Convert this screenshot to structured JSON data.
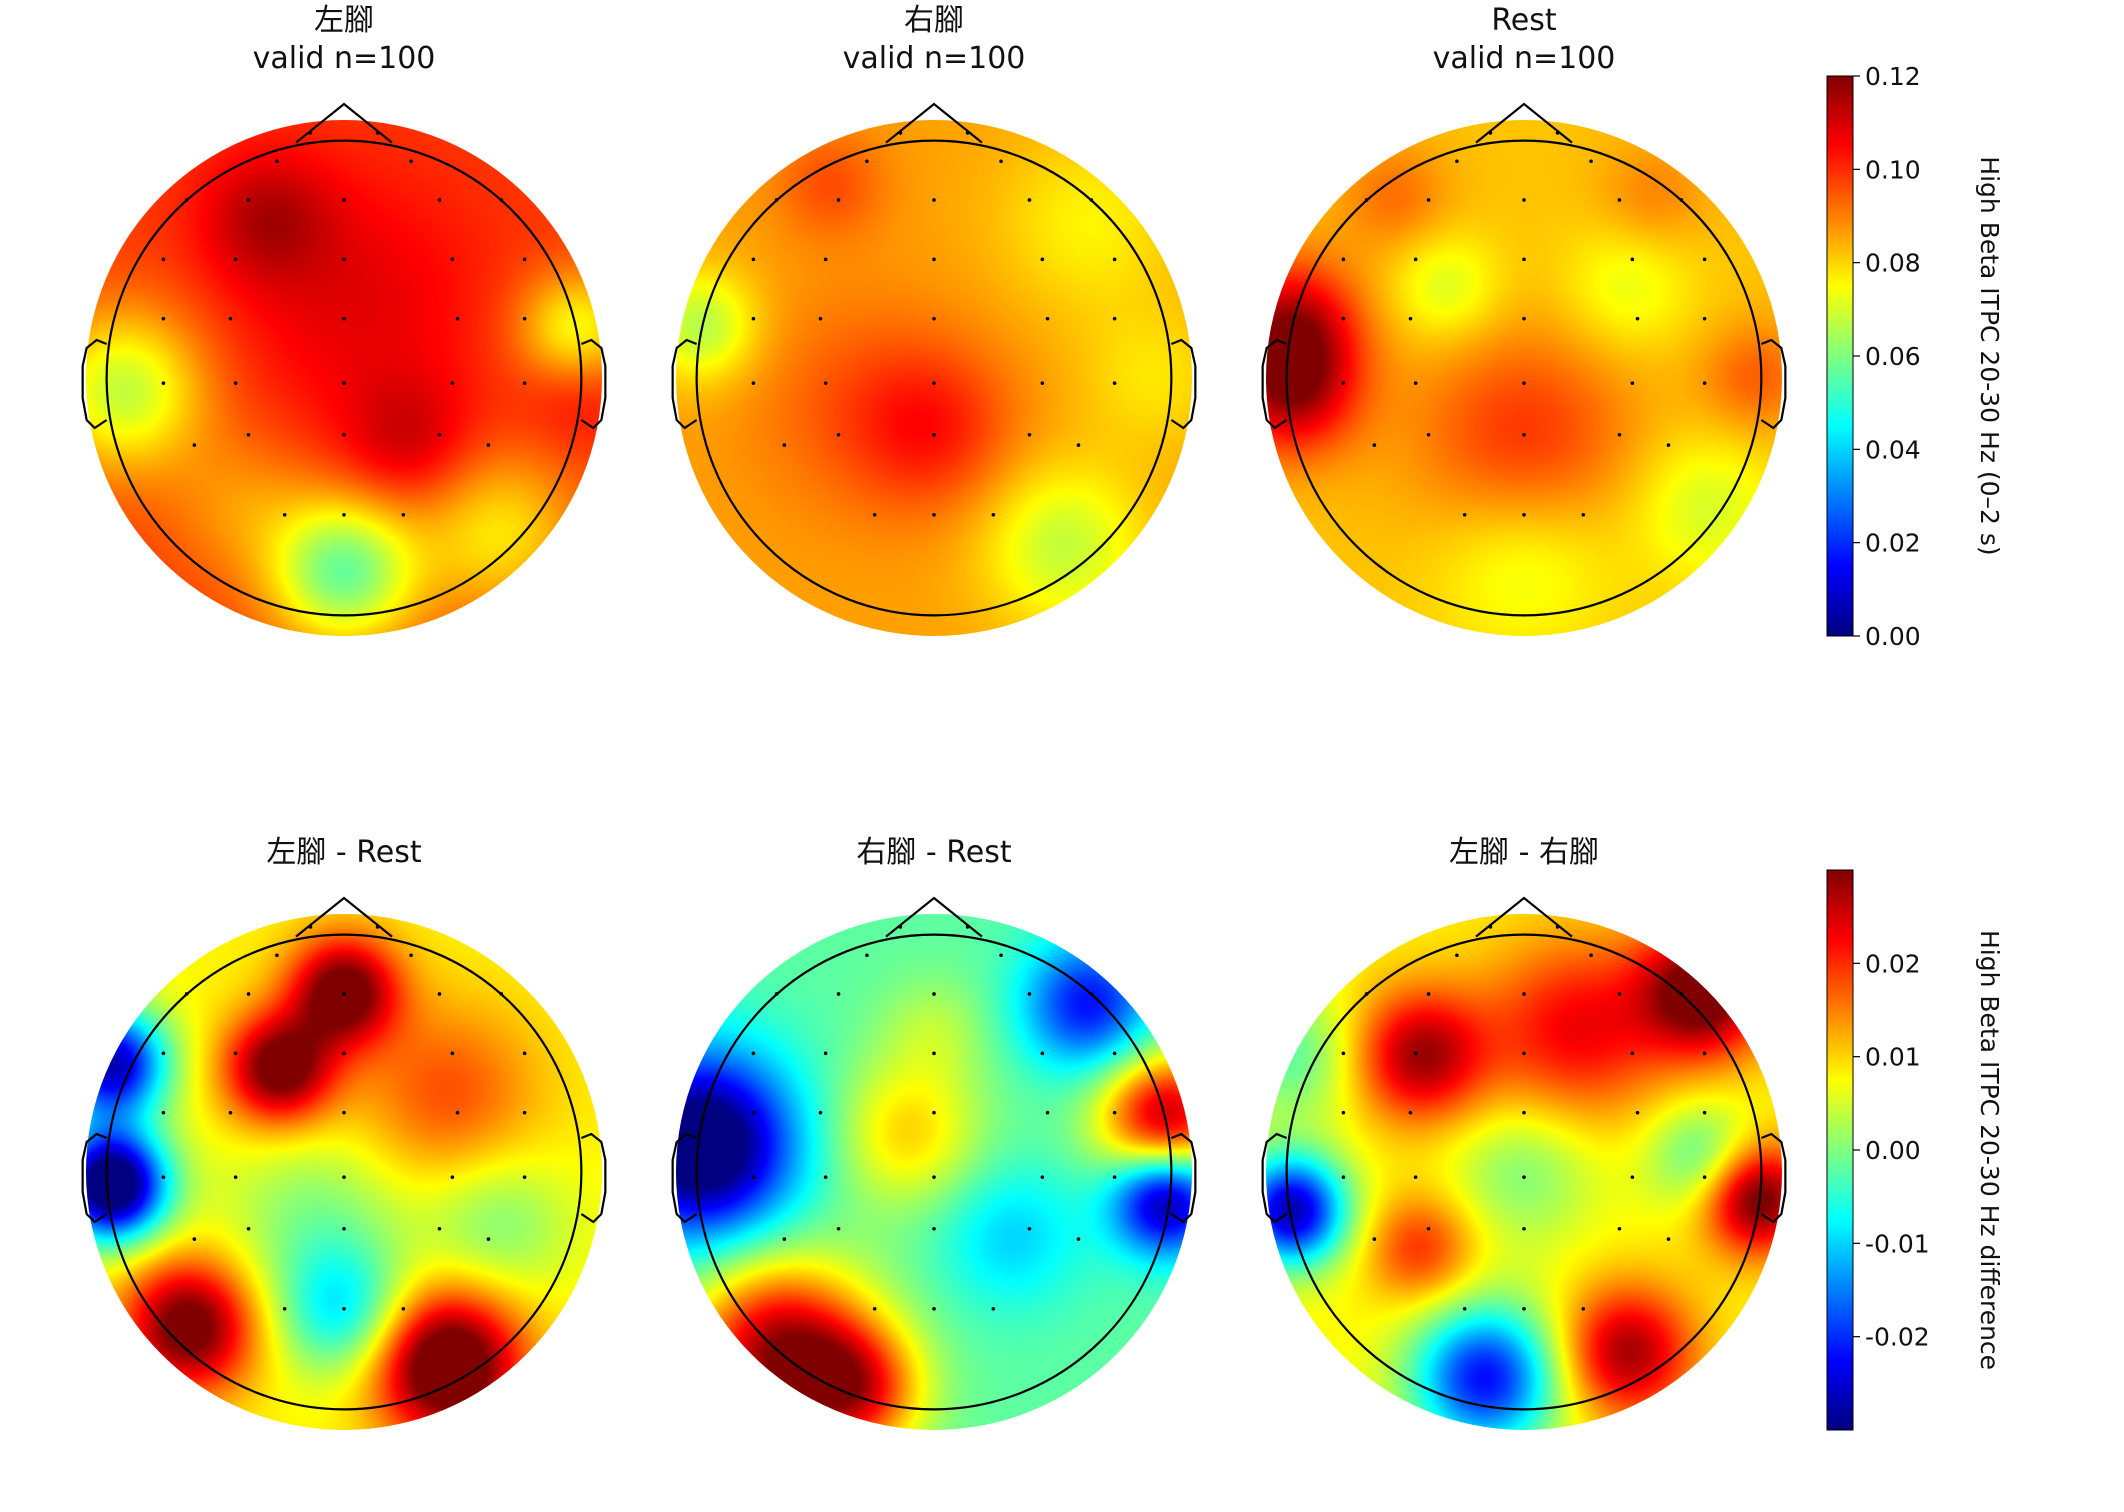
{
  "figure": {
    "colors": {
      "head_outline": "#000000",
      "sensor_dot": "#000000",
      "colormap": "jet",
      "jet_stops": [
        "#00007f",
        "#0000ff",
        "#007fff",
        "#00ffff",
        "#7fff7f",
        "#ffff00",
        "#ff7f00",
        "#ff0000",
        "#7f0000"
      ]
    }
  },
  "chart_data": [
    {
      "type": "heatmap",
      "subtype": "eeg-topomap",
      "title_line1": "左腳",
      "title_line2": "valid n=100",
      "colorbar_group": "itpc",
      "base": 0.098,
      "blobs": [
        {
          "u": -0.3,
          "v": 0.62,
          "a": 0.014,
          "s": 0.18
        },
        {
          "u": 0.05,
          "v": 0.3,
          "a": 0.01,
          "s": 0.35
        },
        {
          "u": 0.25,
          "v": -0.25,
          "a": 0.012,
          "s": 0.18
        },
        {
          "u": 0.9,
          "v": -0.05,
          "a": 0.008,
          "s": 0.15
        },
        {
          "u": -0.85,
          "v": -0.05,
          "a": -0.03,
          "s": 0.22
        },
        {
          "u": 0.9,
          "v": 0.18,
          "a": -0.025,
          "s": 0.16
        },
        {
          "u": 0.0,
          "v": -0.75,
          "a": -0.04,
          "s": 0.2
        },
        {
          "u": 0.6,
          "v": -0.6,
          "a": -0.02,
          "s": 0.22
        },
        {
          "u": -0.4,
          "v": -0.5,
          "a": -0.01,
          "s": 0.2
        }
      ]
    },
    {
      "type": "heatmap",
      "subtype": "eeg-topomap",
      "title_line1": "右腳",
      "title_line2": "valid n=100",
      "colorbar_group": "itpc",
      "base": 0.086,
      "blobs": [
        {
          "u": -0.4,
          "v": 0.75,
          "a": 0.01,
          "s": 0.15
        },
        {
          "u": 0.0,
          "v": -0.2,
          "a": 0.014,
          "s": 0.22
        },
        {
          "u": -0.3,
          "v": -0.1,
          "a": 0.008,
          "s": 0.3
        },
        {
          "u": -0.9,
          "v": 0.2,
          "a": -0.02,
          "s": 0.15
        },
        {
          "u": 0.6,
          "v": 0.6,
          "a": -0.01,
          "s": 0.25
        },
        {
          "u": 0.5,
          "v": -0.65,
          "a": -0.018,
          "s": 0.22
        },
        {
          "u": 0.85,
          "v": 0.0,
          "a": -0.008,
          "s": 0.2
        }
      ]
    },
    {
      "type": "heatmap",
      "subtype": "eeg-topomap",
      "title_line1": "Rest",
      "title_line2": "valid n=100",
      "colorbar_group": "itpc",
      "base": 0.082,
      "blobs": [
        {
          "u": -0.9,
          "v": 0.2,
          "a": 0.03,
          "s": 0.18
        },
        {
          "u": -0.9,
          "v": -0.05,
          "a": 0.03,
          "s": 0.18
        },
        {
          "u": 0.0,
          "v": -0.25,
          "a": 0.018,
          "s": 0.3
        },
        {
          "u": -0.5,
          "v": 0.7,
          "a": 0.01,
          "s": 0.15
        },
        {
          "u": 0.5,
          "v": 0.7,
          "a": 0.008,
          "s": 0.15
        },
        {
          "u": 0.9,
          "v": 0.0,
          "a": 0.012,
          "s": 0.15
        },
        {
          "u": -0.3,
          "v": 0.35,
          "a": -0.012,
          "s": 0.15
        },
        {
          "u": 0.4,
          "v": 0.35,
          "a": -0.01,
          "s": 0.18
        },
        {
          "u": 0.0,
          "v": -0.7,
          "a": -0.012,
          "s": 0.25
        },
        {
          "u": 0.7,
          "v": -0.5,
          "a": -0.012,
          "s": 0.2
        }
      ]
    },
    {
      "type": "heatmap",
      "subtype": "eeg-topomap",
      "title_line1": "左腳 - Rest",
      "title_line2": "",
      "colorbar_group": "diff",
      "base": 0.008,
      "blobs": [
        {
          "u": -0.9,
          "v": -0.05,
          "a": -0.045,
          "s": 0.15
        },
        {
          "u": -0.9,
          "v": 0.42,
          "a": -0.035,
          "s": 0.15
        },
        {
          "u": -0.25,
          "v": 0.4,
          "a": 0.025,
          "s": 0.15
        },
        {
          "u": 0.0,
          "v": 0.7,
          "a": 0.025,
          "s": 0.15
        },
        {
          "u": 0.4,
          "v": 0.3,
          "a": 0.01,
          "s": 0.25
        },
        {
          "u": -0.6,
          "v": -0.6,
          "a": 0.025,
          "s": 0.18
        },
        {
          "u": 0.4,
          "v": -0.75,
          "a": 0.03,
          "s": 0.2
        },
        {
          "u": 0.0,
          "v": -0.55,
          "a": -0.015,
          "s": 0.18
        },
        {
          "u": -0.1,
          "v": -0.2,
          "a": -0.008,
          "s": 0.25
        },
        {
          "u": 0.6,
          "v": -0.2,
          "a": -0.008,
          "s": 0.2
        }
      ]
    },
    {
      "type": "heatmap",
      "subtype": "eeg-topomap",
      "title_line1": "右腳 - Rest",
      "title_line2": "",
      "colorbar_group": "diff",
      "base": -0.002,
      "blobs": [
        {
          "u": -0.9,
          "v": 0.1,
          "a": -0.035,
          "s": 0.25
        },
        {
          "u": 0.9,
          "v": -0.1,
          "a": -0.03,
          "s": 0.15
        },
        {
          "u": 0.6,
          "v": 0.65,
          "a": -0.02,
          "s": 0.18
        },
        {
          "u": 0.9,
          "v": 0.2,
          "a": 0.03,
          "s": 0.18
        },
        {
          "u": -0.6,
          "v": -0.7,
          "a": 0.03,
          "s": 0.25
        },
        {
          "u": -0.3,
          "v": -0.85,
          "a": 0.02,
          "s": 0.18
        },
        {
          "u": -0.1,
          "v": 0.15,
          "a": 0.012,
          "s": 0.2
        },
        {
          "u": 0.3,
          "v": -0.25,
          "a": -0.008,
          "s": 0.2
        },
        {
          "u": 0.0,
          "v": 0.55,
          "a": 0.005,
          "s": 0.15
        }
      ]
    },
    {
      "type": "heatmap",
      "subtype": "eeg-topomap",
      "title_line1": "左腳 - 右腳",
      "title_line2": "",
      "colorbar_group": "diff",
      "base": 0.008,
      "blobs": [
        {
          "u": -0.9,
          "v": -0.15,
          "a": -0.035,
          "s": 0.15
        },
        {
          "u": -0.9,
          "v": 0.45,
          "a": -0.01,
          "s": 0.18
        },
        {
          "u": 0.9,
          "v": -0.1,
          "a": 0.025,
          "s": 0.15
        },
        {
          "u": 0.7,
          "v": 0.7,
          "a": 0.025,
          "s": 0.18
        },
        {
          "u": -0.4,
          "v": 0.45,
          "a": 0.02,
          "s": 0.18
        },
        {
          "u": 0.2,
          "v": 0.55,
          "a": 0.015,
          "s": 0.25
        },
        {
          "u": -0.15,
          "v": -0.8,
          "a": -0.03,
          "s": 0.2
        },
        {
          "u": 0.4,
          "v": -0.7,
          "a": 0.02,
          "s": 0.18
        },
        {
          "u": -0.4,
          "v": -0.3,
          "a": 0.012,
          "s": 0.15
        },
        {
          "u": 0.0,
          "v": 0.0,
          "a": -0.008,
          "s": 0.2
        },
        {
          "u": 0.7,
          "v": 0.05,
          "a": -0.012,
          "s": 0.15
        }
      ]
    }
  ],
  "colorbars": [
    {
      "id": "itpc",
      "label": "High Beta ITPC 20-30 Hz (0–2 s)",
      "vmin": 0.0,
      "vmax": 0.12,
      "ticks": [
        {
          "value": 0.0,
          "label": "0.00"
        },
        {
          "value": 0.02,
          "label": "0.02"
        },
        {
          "value": 0.04,
          "label": "0.04"
        },
        {
          "value": 0.06,
          "label": "0.06"
        },
        {
          "value": 0.08,
          "label": "0.08"
        },
        {
          "value": 0.1,
          "label": "0.10"
        },
        {
          "value": 0.12,
          "label": "0.12"
        }
      ]
    },
    {
      "id": "diff",
      "label": "High Beta ITPC 20-30 Hz difference",
      "vmin": -0.03,
      "vmax": 0.03,
      "ticks": [
        {
          "value": -0.02,
          "label": "-0.02"
        },
        {
          "value": -0.01,
          "label": "-0.01"
        },
        {
          "value": 0.0,
          "label": "0.00"
        },
        {
          "value": 0.01,
          "label": "0.01"
        },
        {
          "value": 0.02,
          "label": "0.02"
        }
      ]
    }
  ]
}
